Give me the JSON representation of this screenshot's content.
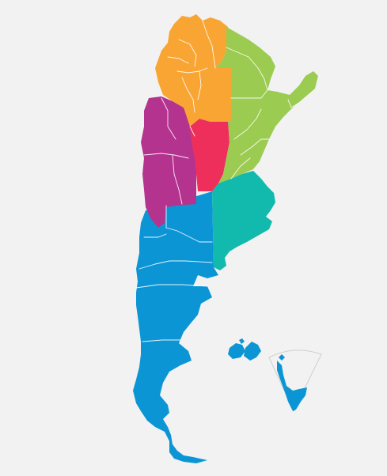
{
  "map": {
    "background": "#f2f2f2",
    "border_color": "#ffffff",
    "regions": [
      {
        "id": "noa",
        "color": "#f9a533"
      },
      {
        "id": "nea",
        "color": "#9ccb51"
      },
      {
        "id": "cuyo",
        "color": "#b4338f"
      },
      {
        "id": "santiago-del-estero",
        "color": "#ee2f5c"
      },
      {
        "id": "pampeana",
        "color": "#12b9ad"
      },
      {
        "id": "patagonia",
        "color": "#0c95d5"
      }
    ],
    "islands": {
      "color": "#0c95d5"
    },
    "antarctica_inset": {
      "color": "#0c95d5",
      "outline": "#cfcfcf"
    }
  }
}
